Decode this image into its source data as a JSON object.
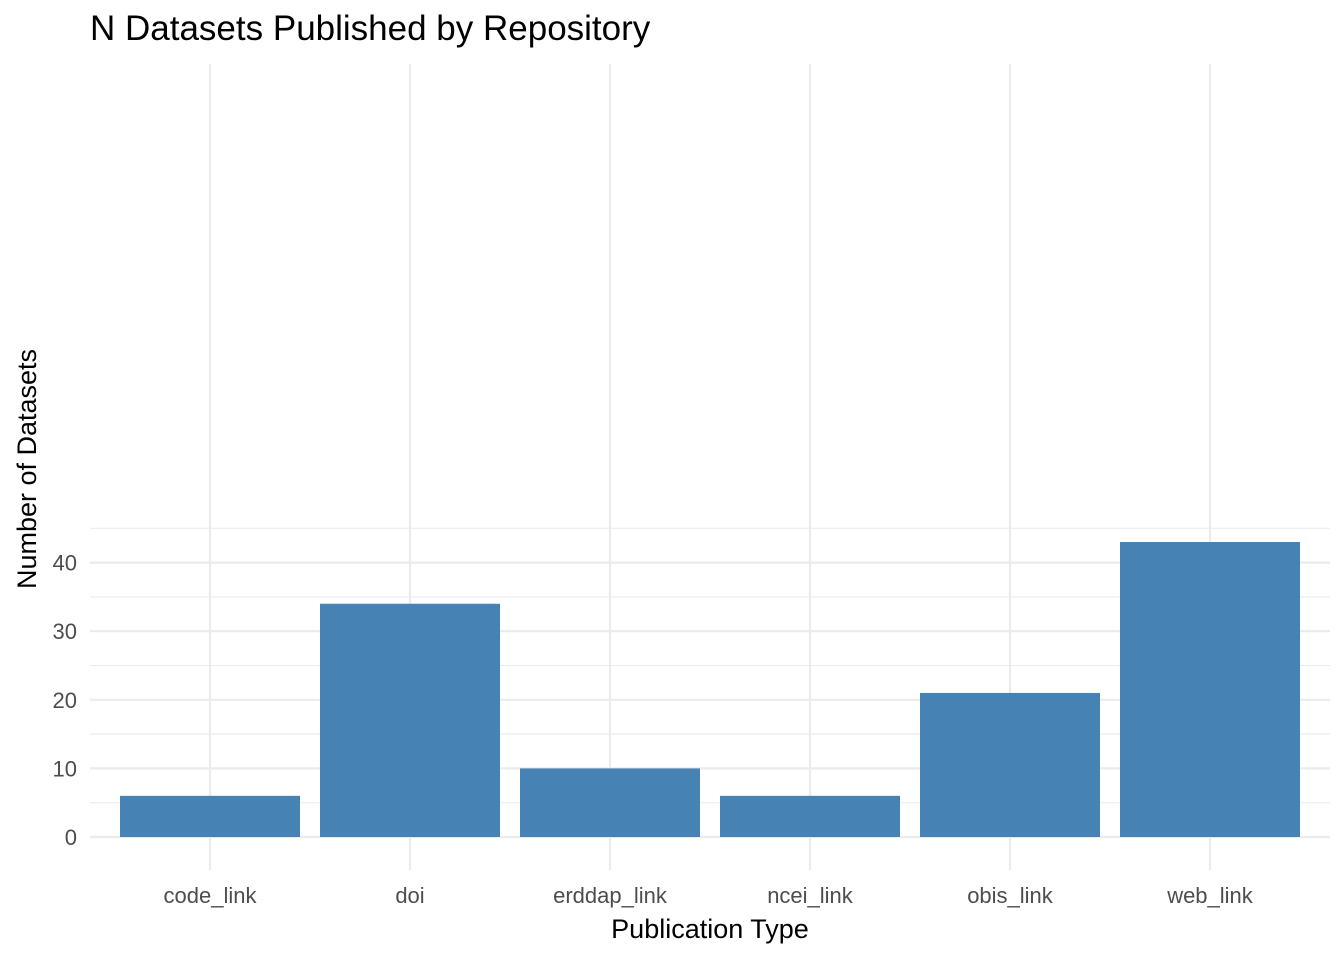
{
  "chart_data": {
    "type": "bar",
    "title": "N Datasets Published by Repository",
    "xlabel": "Publication Type",
    "ylabel": "Number of Datasets",
    "categories": [
      "code_link",
      "doi",
      "erddap_link",
      "ncei_link",
      "obis_link",
      "web_link"
    ],
    "values": [
      6,
      34,
      10,
      6,
      21,
      43
    ],
    "yticks": [
      0,
      10,
      20,
      30,
      40
    ],
    "ylim": [
      0,
      45
    ],
    "grid": true,
    "legend": "none",
    "bar_color": "#4682B4"
  }
}
